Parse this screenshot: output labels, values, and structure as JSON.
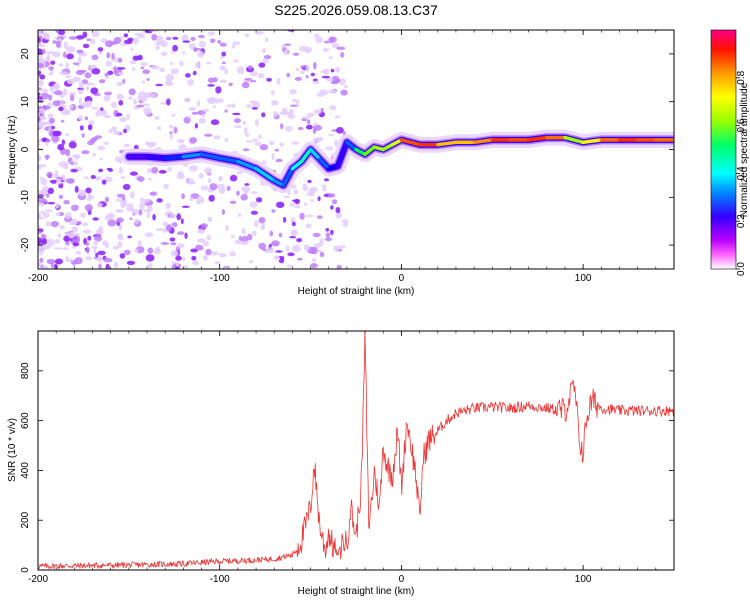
{
  "title": "S225.2026.059.08.13.C37",
  "chart_data": [
    {
      "type": "heatmap",
      "name": "spectrogram",
      "xlabel": "Height of straight line (km)",
      "ylabel": "Frequency (Hz)",
      "xlim": [
        -200,
        150
      ],
      "ylim": [
        -25,
        25
      ],
      "xticks": [
        -200,
        -100,
        0,
        100
      ],
      "yticks": [
        -20,
        -10,
        0,
        10,
        20
      ],
      "colorbar": {
        "label": "Normalized spectral amplitude",
        "range": [
          0,
          1
        ],
        "ticks": [
          "0.0",
          "0.2",
          "0.4",
          "0.6",
          "0.8"
        ],
        "colors": [
          "#ffffff",
          "#ff00ff",
          "#9900ff",
          "#0000ff",
          "#00ffff",
          "#00ff00",
          "#ffff00",
          "#ff8800",
          "#ff0000",
          "#ff0080"
        ]
      },
      "ridge": {
        "x": [
          -150,
          -140,
          -130,
          -120,
          -110,
          -100,
          -90,
          -80,
          -70,
          -65,
          -60,
          -55,
          -50,
          -45,
          -40,
          -35,
          -30,
          -25,
          -20,
          -15,
          -10,
          -5,
          0,
          10,
          20,
          30,
          40,
          50,
          60,
          70,
          80,
          90,
          100,
          110,
          120,
          130,
          140,
          150
        ],
        "frequency": [
          -1.5,
          -1.5,
          -1.8,
          -1.5,
          -1.0,
          -1.8,
          -2.5,
          -4.0,
          -6.5,
          -7.5,
          -4.0,
          -2.5,
          0.0,
          -2.0,
          -4.0,
          -3.5,
          1.5,
          0.0,
          -1.0,
          0.5,
          0.0,
          1.0,
          2.0,
          1.0,
          1.0,
          1.5,
          1.5,
          2.0,
          2.0,
          2.0,
          2.5,
          2.5,
          1.5,
          2.0,
          2.0,
          2.0,
          2.0,
          2.0
        ],
        "amplitude": [
          0.25,
          0.3,
          0.3,
          0.4,
          0.4,
          0.35,
          0.4,
          0.4,
          0.45,
          0.35,
          0.4,
          0.5,
          0.45,
          0.4,
          0.35,
          0.3,
          0.3,
          0.45,
          0.6,
          0.6,
          0.65,
          0.6,
          0.7,
          0.95,
          0.75,
          0.7,
          0.75,
          0.8,
          0.9,
          0.75,
          0.95,
          0.65,
          0.6,
          0.75,
          0.85,
          0.85,
          0.8,
          0.8
        ]
      }
    },
    {
      "type": "line",
      "name": "snr",
      "xlabel": "Height of straight line (km)",
      "ylabel": "SNR (10 * v/v)",
      "xlim": [
        -200,
        150
      ],
      "ylim": [
        0,
        960
      ],
      "xticks": [
        -200,
        -100,
        0,
        100
      ],
      "yticks": [
        0,
        200,
        400,
        600,
        800
      ],
      "color": "#ee3333",
      "x": [
        -200,
        -150,
        -120,
        -100,
        -80,
        -70,
        -60,
        -55,
        -50,
        -48,
        -45,
        -42,
        -40,
        -38,
        -35,
        -32,
        -30,
        -28,
        -25,
        -22,
        -20,
        -19,
        -18,
        -16,
        -15,
        -12,
        -10,
        -8,
        -5,
        -2,
        0,
        3,
        5,
        8,
        10,
        12,
        15,
        20,
        25,
        30,
        40,
        50,
        60,
        70,
        80,
        90,
        95,
        98,
        100,
        102,
        105,
        110,
        120,
        130,
        140,
        150
      ],
      "snr": [
        15,
        20,
        25,
        35,
        40,
        45,
        60,
        120,
        250,
        430,
        180,
        80,
        150,
        100,
        60,
        120,
        100,
        260,
        130,
        350,
        950,
        550,
        180,
        300,
        400,
        250,
        500,
        420,
        380,
        560,
        330,
        600,
        520,
        380,
        200,
        450,
        520,
        560,
        600,
        630,
        650,
        655,
        650,
        660,
        650,
        640,
        740,
        520,
        470,
        620,
        680,
        650,
        640,
        640,
        640,
        640
      ]
    }
  ]
}
